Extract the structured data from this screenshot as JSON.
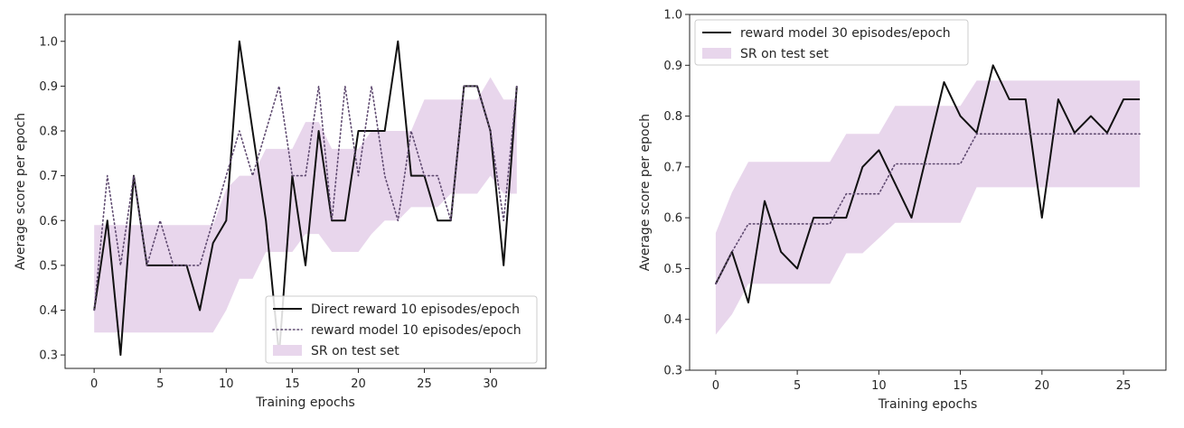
{
  "colors": {
    "band": "#e8d6ec",
    "solid": "#111111",
    "dotted": "#5f4a70",
    "frame": "#222222"
  },
  "chart_data": [
    {
      "type": "line",
      "xlabel": "Training epochs",
      "ylabel": "Average score per epoch",
      "xlim": [
        -2.2,
        34.2
      ],
      "ylim": [
        0.27,
        1.06
      ],
      "xticks": [
        0,
        5,
        10,
        15,
        20,
        25,
        30
      ],
      "xtick_labels": [
        "0",
        "5",
        "10",
        "15",
        "20",
        "25",
        "30"
      ],
      "yticks": [
        0.3,
        0.4,
        0.5,
        0.6,
        0.7,
        0.8,
        0.9,
        1.0
      ],
      "ytick_labels": [
        "0.3",
        "0.4",
        "0.5",
        "0.6",
        "0.7",
        "0.8",
        "0.9",
        "1.0"
      ],
      "legend_position": "lower-right",
      "series": [
        {
          "name": "Direct reward 10 episodes/epoch",
          "style": "solid",
          "x": [
            0,
            1,
            2,
            3,
            4,
            5,
            6,
            7,
            8,
            9,
            10,
            11,
            12,
            13,
            14,
            15,
            16,
            17,
            18,
            19,
            20,
            21,
            22,
            23,
            24,
            25,
            26,
            27,
            28,
            29,
            30,
            31,
            32
          ],
          "y": [
            0.4,
            0.6,
            0.3,
            0.7,
            0.5,
            0.5,
            0.5,
            0.5,
            0.4,
            0.55,
            0.6,
            1.0,
            0.8,
            0.6,
            0.3,
            0.7,
            0.5,
            0.8,
            0.6,
            0.6,
            0.8,
            0.8,
            0.8,
            1.0,
            0.7,
            0.7,
            0.6,
            0.6,
            0.9,
            0.9,
            0.8,
            0.5,
            0.9
          ]
        },
        {
          "name": "reward model 10 episodes/epoch",
          "style": "dotted",
          "x": [
            0,
            1,
            2,
            3,
            4,
            5,
            6,
            7,
            8,
            9,
            10,
            11,
            12,
            13,
            14,
            15,
            16,
            17,
            18,
            19,
            20,
            21,
            22,
            23,
            24,
            25,
            26,
            27,
            28,
            29,
            30,
            31,
            32
          ],
          "y": [
            0.4,
            0.7,
            0.5,
            0.7,
            0.5,
            0.6,
            0.5,
            0.5,
            0.5,
            0.6,
            0.7,
            0.8,
            0.7,
            0.8,
            0.9,
            0.7,
            0.7,
            0.9,
            0.6,
            0.9,
            0.7,
            0.9,
            0.7,
            0.6,
            0.8,
            0.7,
            0.7,
            0.6,
            0.9,
            0.9,
            0.8,
            0.6,
            0.9
          ]
        },
        {
          "name": "SR on test set",
          "style": "band",
          "x": [
            0,
            1,
            2,
            3,
            4,
            5,
            6,
            7,
            8,
            9,
            10,
            11,
            12,
            13,
            14,
            15,
            16,
            17,
            18,
            19,
            20,
            21,
            22,
            23,
            24,
            25,
            26,
            27,
            28,
            29,
            30,
            31,
            32
          ],
          "lower": [
            0.35,
            0.35,
            0.35,
            0.35,
            0.35,
            0.35,
            0.35,
            0.35,
            0.35,
            0.35,
            0.4,
            0.47,
            0.47,
            0.53,
            0.53,
            0.53,
            0.57,
            0.57,
            0.53,
            0.53,
            0.53,
            0.57,
            0.6,
            0.6,
            0.63,
            0.63,
            0.63,
            0.66,
            0.66,
            0.66,
            0.7,
            0.66,
            0.66
          ],
          "upper": [
            0.59,
            0.59,
            0.59,
            0.59,
            0.59,
            0.59,
            0.59,
            0.59,
            0.59,
            0.59,
            0.67,
            0.7,
            0.7,
            0.76,
            0.76,
            0.76,
            0.82,
            0.82,
            0.76,
            0.76,
            0.76,
            0.8,
            0.8,
            0.8,
            0.8,
            0.87,
            0.87,
            0.87,
            0.87,
            0.87,
            0.92,
            0.87,
            0.87
          ]
        }
      ]
    },
    {
      "type": "line",
      "xlabel": "Training epochs",
      "ylabel": "Average score per epoch",
      "xlim": [
        -1.6,
        27.6
      ],
      "ylim": [
        0.3,
        1.0
      ],
      "xticks": [
        0,
        5,
        10,
        15,
        20,
        25
      ],
      "xtick_labels": [
        "0",
        "5",
        "10",
        "15",
        "20",
        "25"
      ],
      "yticks": [
        0.3,
        0.4,
        0.5,
        0.6,
        0.7,
        0.8,
        0.9,
        1.0
      ],
      "ytick_labels": [
        "0.3",
        "0.4",
        "0.5",
        "0.6",
        "0.7",
        "0.8",
        "0.9",
        "1.0"
      ],
      "legend_position": "upper-left",
      "series": [
        {
          "name": "reward model 30  episodes/epoch",
          "style": "solid",
          "x": [
            0,
            1,
            2,
            3,
            4,
            5,
            6,
            7,
            8,
            9,
            10,
            11,
            12,
            13,
            14,
            15,
            16,
            17,
            18,
            19,
            20,
            21,
            22,
            23,
            24,
            25,
            26
          ],
          "y": [
            0.47,
            0.533,
            0.433,
            0.633,
            0.533,
            0.5,
            0.6,
            0.6,
            0.6,
            0.7,
            0.733,
            0.667,
            0.6,
            0.733,
            0.867,
            0.8,
            0.767,
            0.9,
            0.833,
            0.833,
            0.6,
            0.833,
            0.767,
            0.8,
            0.767,
            0.833,
            0.833
          ]
        },
        {
          "name": "",
          "style": "dotted",
          "x": [
            0,
            1,
            2,
            3,
            4,
            5,
            6,
            7,
            8,
            9,
            10,
            11,
            12,
            13,
            14,
            15,
            16,
            17,
            18,
            19,
            20,
            21,
            22,
            23,
            24,
            25,
            26
          ],
          "y": [
            0.47,
            0.533,
            0.588,
            0.588,
            0.588,
            0.588,
            0.588,
            0.588,
            0.647,
            0.647,
            0.647,
            0.706,
            0.706,
            0.706,
            0.706,
            0.706,
            0.765,
            0.765,
            0.765,
            0.765,
            0.765,
            0.765,
            0.765,
            0.765,
            0.765,
            0.765,
            0.765
          ]
        },
        {
          "name": "SR on test set",
          "style": "band",
          "x": [
            0,
            1,
            2,
            3,
            4,
            5,
            6,
            7,
            8,
            9,
            10,
            11,
            12,
            13,
            14,
            15,
            16,
            17,
            18,
            19,
            20,
            21,
            22,
            23,
            24,
            25,
            26
          ],
          "lower": [
            0.37,
            0.41,
            0.47,
            0.47,
            0.47,
            0.47,
            0.47,
            0.47,
            0.53,
            0.53,
            0.56,
            0.59,
            0.59,
            0.59,
            0.59,
            0.59,
            0.66,
            0.66,
            0.66,
            0.66,
            0.66,
            0.66,
            0.66,
            0.66,
            0.66,
            0.66,
            0.66
          ],
          "upper": [
            0.57,
            0.65,
            0.71,
            0.71,
            0.71,
            0.71,
            0.71,
            0.71,
            0.765,
            0.765,
            0.765,
            0.82,
            0.82,
            0.82,
            0.82,
            0.82,
            0.87,
            0.87,
            0.87,
            0.87,
            0.87,
            0.87,
            0.87,
            0.87,
            0.87,
            0.87,
            0.87
          ]
        }
      ]
    }
  ]
}
